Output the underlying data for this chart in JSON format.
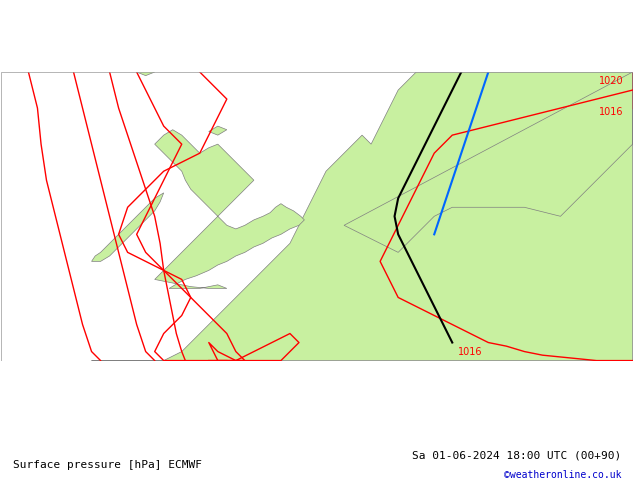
{
  "title_left": "Surface pressure [hPa] ECMWF",
  "title_right": "Sa 01-06-2024 18:00 UTC (00+90)",
  "copyright": "©weatheronline.co.uk",
  "background_sea": "#d8d8d8",
  "background_land": "#c8f0a0",
  "border_color": "#808080",
  "isobar_color": "#ff0000",
  "isobar_labels": [
    "1020",
    "1016",
    "1016"
  ],
  "front_cold_color": "#0000cc",
  "front_warm_color": "#000000",
  "text_color": "#000000",
  "copyright_color": "#0000cc",
  "figsize": [
    6.34,
    4.9
  ],
  "dpi": 100
}
